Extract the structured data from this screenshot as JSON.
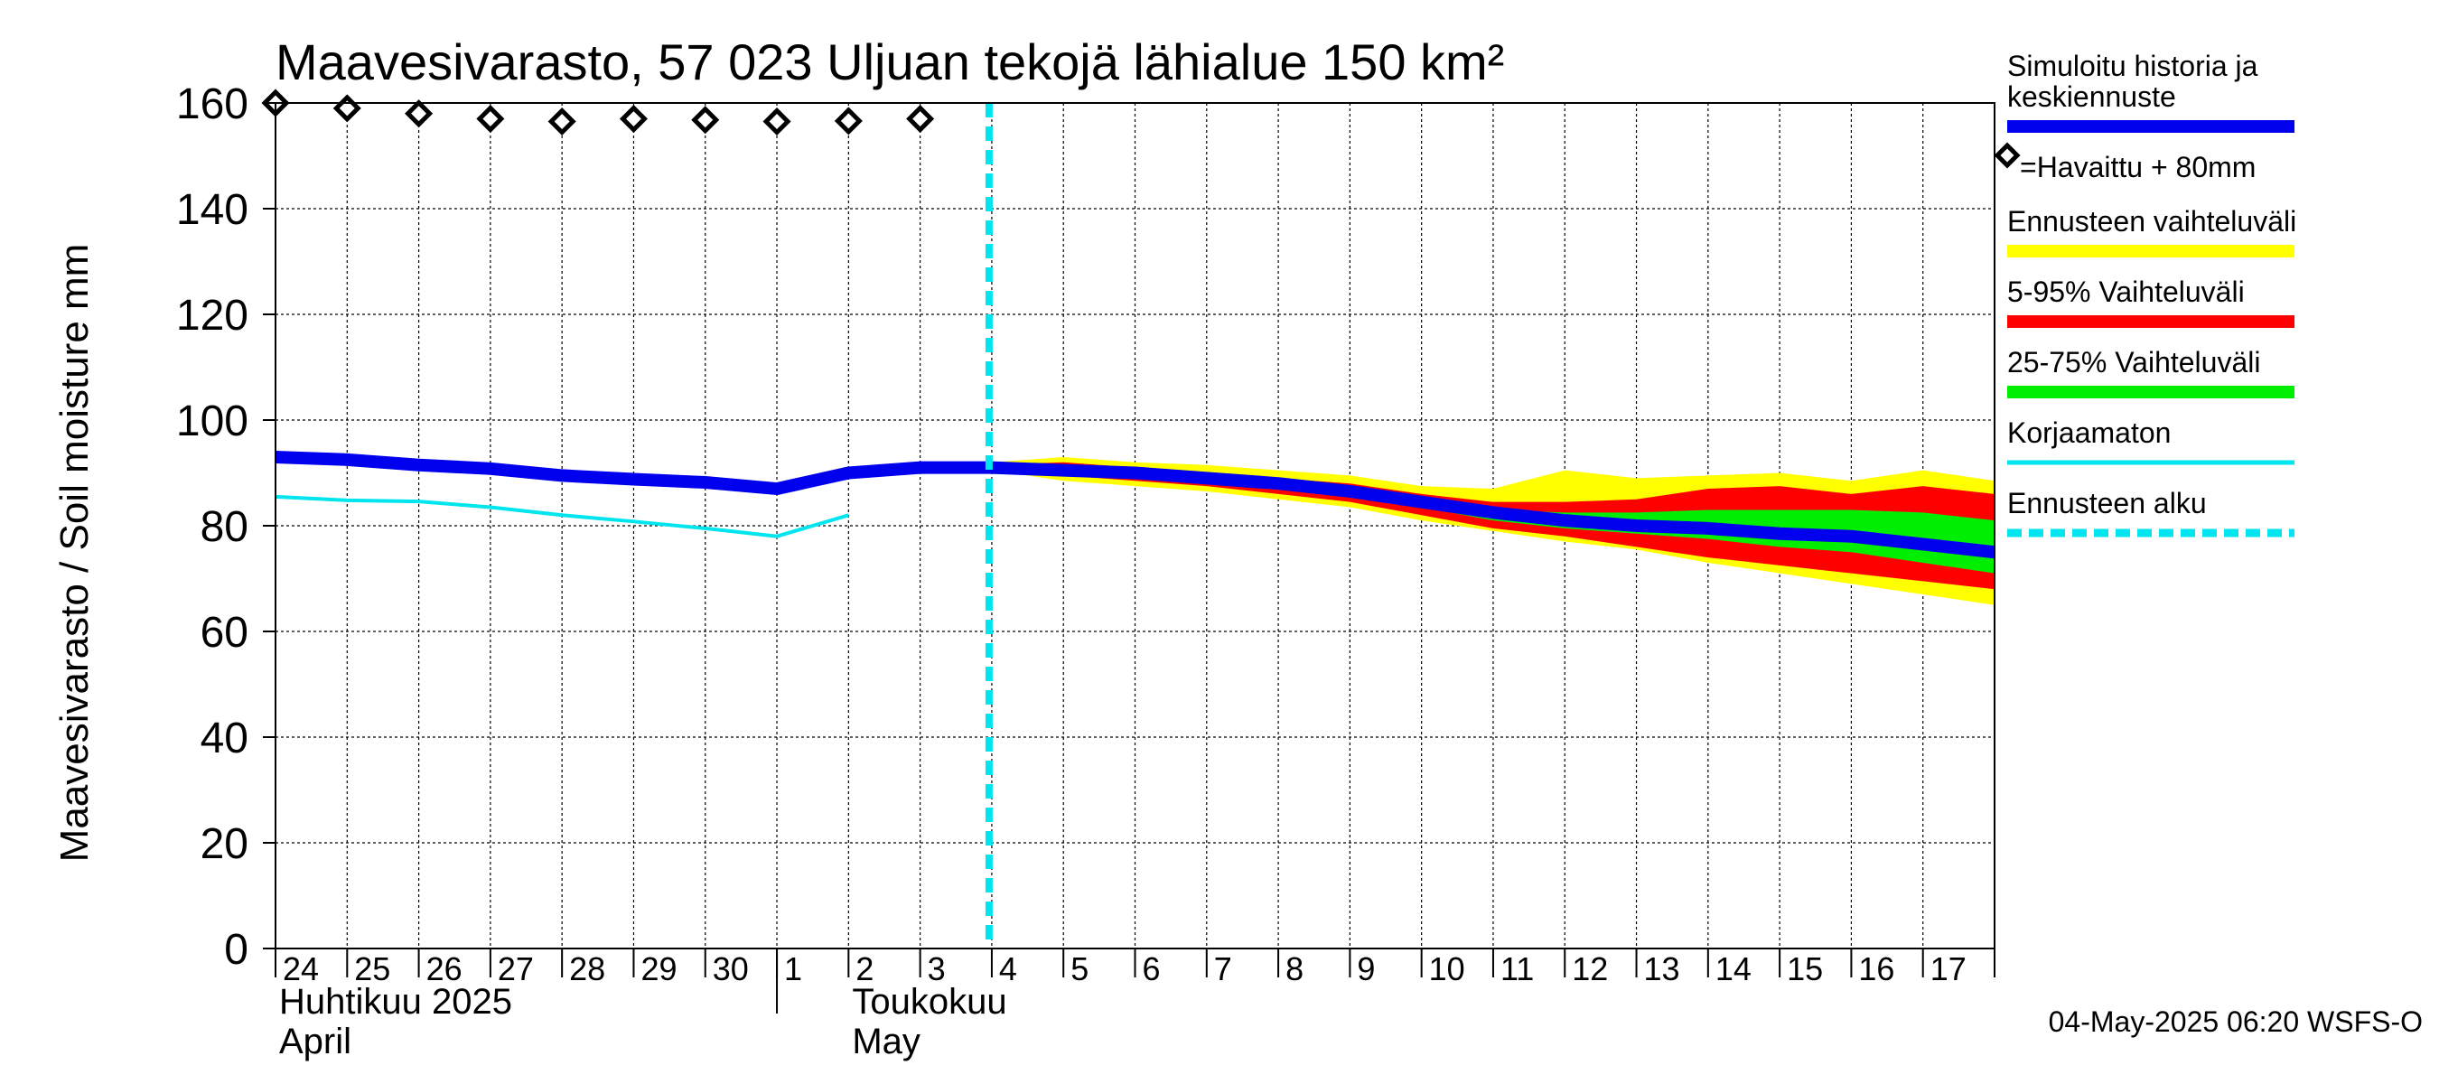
{
  "chart_data": {
    "type": "line",
    "title": "Maavesivarasto, 57 023 Uljuan tekojä lähialue 150 km²",
    "ylabel": "Maavesivarasto / Soil moisture   mm",
    "ylim": [
      0,
      160
    ],
    "yticks": [
      0,
      20,
      40,
      60,
      80,
      100,
      120,
      140,
      160
    ],
    "x_day_labels": [
      "24",
      "25",
      "26",
      "27",
      "28",
      "29",
      "30",
      "1",
      "2",
      "3",
      "4",
      "5",
      "6",
      "7",
      "8",
      "9",
      "10",
      "11",
      "12",
      "13",
      "14",
      "15",
      "16",
      "17"
    ],
    "month_labels": [
      {
        "fi": "Huhtikuu  2025",
        "en": "April",
        "at_day_index": 0
      },
      {
        "fi": "Toukokuu",
        "en": "May",
        "at_day_index": 8
      }
    ],
    "forecast_start_day_index": 10,
    "series": [
      {
        "name": "Simuloitu historia ja keskiennuste",
        "color": "#0000ee",
        "x": [
          0,
          1,
          2,
          3,
          4,
          5,
          6,
          7,
          8,
          9,
          10,
          11,
          12,
          13,
          14,
          15,
          16,
          17,
          18,
          19,
          20,
          21,
          22,
          23,
          24
        ],
        "values": [
          93,
          92.5,
          91.5,
          90.8,
          89.5,
          88.8,
          88.2,
          87,
          90,
          91,
          91,
          90.5,
          90,
          89,
          88,
          86.5,
          84.5,
          82.5,
          81,
          80,
          79.5,
          78.5,
          78,
          76.5,
          75
        ]
      },
      {
        "name": "Korjaamaton",
        "color": "#00e5ee",
        "x": [
          0,
          1,
          2,
          3,
          4,
          5,
          6,
          7,
          8
        ],
        "values": [
          85.5,
          84.8,
          84.6,
          83.5,
          82,
          80.8,
          79.5,
          78,
          82
        ]
      },
      {
        "name": "=Havaittu + 80mm",
        "color": "#000000",
        "x": [
          0,
          1,
          2,
          3,
          4,
          5,
          6,
          7,
          8,
          9
        ],
        "values": [
          160,
          159,
          158,
          157,
          156.5,
          157,
          156.8,
          156.5,
          156.6,
          157
        ]
      }
    ],
    "bands": [
      {
        "name": "Ennusteen vaihteluväli",
        "color": "#ffff00",
        "x": [
          10,
          11,
          12,
          13,
          14,
          15,
          16,
          17,
          18,
          19,
          20,
          21,
          22,
          23,
          24
        ],
        "upper": [
          92,
          93,
          92,
          91.5,
          90.5,
          89.5,
          87.5,
          87,
          90.5,
          89,
          89.5,
          90,
          88.5,
          90.5,
          88.5
        ],
        "lower": [
          90.5,
          88.5,
          87.5,
          86.5,
          85,
          83.5,
          81,
          79,
          77,
          75.5,
          73,
          71,
          69,
          67,
          65
        ]
      },
      {
        "name": "5-95% Vaihteluväli",
        "color": "#ff0000",
        "x": [
          10,
          11,
          12,
          13,
          14,
          15,
          16,
          17,
          18,
          19,
          20,
          21,
          22,
          23,
          24
        ],
        "upper": [
          91.5,
          92,
          91,
          90,
          89,
          88,
          86,
          84.5,
          84.5,
          85,
          87,
          87.5,
          86,
          87.5,
          86
        ],
        "lower": [
          91,
          89.5,
          88.5,
          87.5,
          86,
          84.5,
          82,
          79.5,
          78,
          76,
          74,
          72.5,
          71,
          69.5,
          68
        ]
      },
      {
        "name": "25-75% Vaihteluväli",
        "color": "#00ee00",
        "x": [
          10,
          11,
          12,
          13,
          14,
          15,
          16,
          17,
          18,
          19,
          20,
          21,
          22,
          23,
          24
        ],
        "upper": [
          91.2,
          91,
          90.5,
          89.5,
          88.5,
          87,
          85,
          83,
          82.5,
          82.5,
          83,
          83,
          83,
          82.5,
          81
        ],
        "lower": [
          91.1,
          90,
          89.5,
          88.5,
          87,
          85.5,
          83.5,
          81,
          79.5,
          78.5,
          77.5,
          76,
          75,
          73,
          71
        ]
      }
    ],
    "legend": [
      {
        "label": "Simuloitu historia ja",
        "label2": "keskiennuste",
        "color": "#0000ee",
        "style": "line"
      },
      {
        "label": "=Havaittu + 80mm",
        "color": "#000000",
        "style": "diamond"
      },
      {
        "label": "Ennusteen vaihteluväli",
        "color": "#ffff00",
        "style": "line"
      },
      {
        "label": "5-95% Vaihteluväli",
        "color": "#ff0000",
        "style": "line"
      },
      {
        "label": "25-75% Vaihteluväli",
        "color": "#00ee00",
        "style": "line"
      },
      {
        "label": "Korjaamaton",
        "color": "#00e5ee",
        "style": "thin"
      },
      {
        "label": "Ennusteen alku",
        "color": "#00e5ee",
        "style": "dashed"
      }
    ],
    "legend_position": "right",
    "grid": true,
    "footer": "04-May-2025 06:20 WSFS-O"
  }
}
